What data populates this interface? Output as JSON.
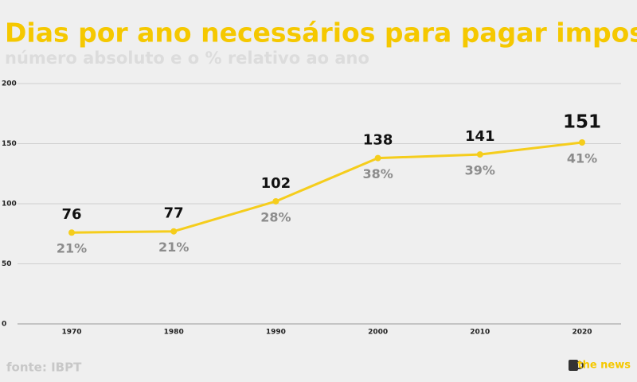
{
  "chart_data": {
    "type": "line",
    "title": "Dias por ano necessários para pagar impostos",
    "subtitle": "número absoluto e o % relativo ao ano",
    "categories": [
      "1970",
      "1980",
      "1990",
      "2000",
      "2010",
      "2020"
    ],
    "values": [
      76,
      77,
      102,
      138,
      141,
      151
    ],
    "relative": {
      "values": [
        21,
        21,
        28,
        38,
        39,
        41
      ],
      "value_labels": [
        "21%",
        "21%",
        "28%",
        "38%",
        "39%",
        "41%"
      ]
    },
    "color": "#f5cd1c",
    "ylim": [
      0,
      200
    ],
    "yticks": [
      0,
      50,
      100,
      150,
      200
    ],
    "grid": true,
    "source": "fonte: IBPT",
    "brand": "the news"
  }
}
